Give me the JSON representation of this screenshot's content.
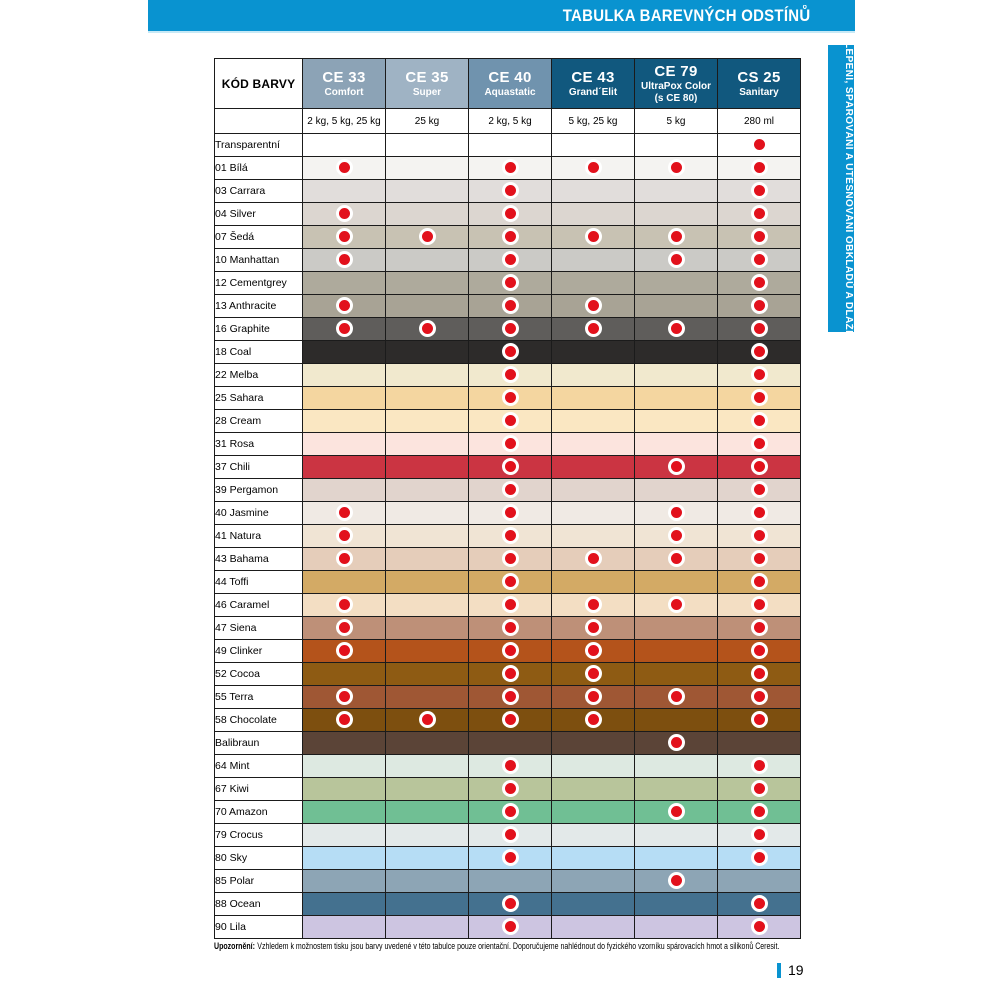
{
  "page": {
    "title": "TABULKA BAREVNÝCH ODSTÍNŮ",
    "side_tab": "LEPENÍ, SPÁROVÁNÍ A UTĚSŇOVÁNÍ OBKLADŮ A DLAŽBY",
    "note_label": "Upozornění:",
    "note_text": "Vzhledem k možnostem tisku jsou barvy uvedené v této tabulce pouze orientační. Doporučujeme nahlédnout do fyzického vzorníku spárovacích hmot a silikonů Ceresit.",
    "page_number": "19"
  },
  "colors": {
    "accent_cyan": "#0993D0",
    "header_dark_blue": "#11587E",
    "dot_red": "#E2111C"
  },
  "table": {
    "corner_label": "KÓD BARVY",
    "columns": [
      {
        "code": "CE 33",
        "name": "Comfort",
        "packages": "2 kg, 5 kg, 25 kg",
        "header_bg": "#8CA3B6"
      },
      {
        "code": "CE 35",
        "name": "Super",
        "packages": "25 kg",
        "header_bg": "#9FB3C4"
      },
      {
        "code": "CE 40",
        "name": "Aquastatic",
        "packages": "2 kg, 5 kg",
        "header_bg": "#7093AE"
      },
      {
        "code": "CE 43",
        "name": "Grand´Elit",
        "packages": "5 kg, 25 kg",
        "header_bg": "#11587E"
      },
      {
        "code": "CE 79",
        "name": "UltraPox Color",
        "name2": "(s CE 80)",
        "packages": "5 kg",
        "header_bg": "#11587E"
      },
      {
        "code": "CS 25",
        "name": "Sanitary",
        "packages": "280 ml",
        "header_bg": "#11587E"
      }
    ],
    "rows": [
      {
        "label": "Transparentní",
        "swatch": "#FFFFFF",
        "dots": [
          0,
          0,
          0,
          0,
          0,
          1
        ]
      },
      {
        "label": "01 Bílá",
        "swatch": "#F4F3F1",
        "dots": [
          1,
          0,
          1,
          1,
          1,
          1
        ]
      },
      {
        "label": "03 Carrara",
        "swatch": "#E1DDDB",
        "dots": [
          0,
          0,
          1,
          0,
          0,
          1
        ]
      },
      {
        "label": "04 Silver",
        "swatch": "#DCD6D0",
        "dots": [
          1,
          0,
          1,
          0,
          0,
          1
        ]
      },
      {
        "label": "07 Šedá",
        "swatch": "#C8C2B3",
        "dots": [
          1,
          1,
          1,
          1,
          1,
          1
        ]
      },
      {
        "label": "10 Manhattan",
        "swatch": "#CBCAC6",
        "dots": [
          1,
          0,
          1,
          0,
          1,
          1
        ]
      },
      {
        "label": "12 Cementgrey",
        "swatch": "#AEAA9C",
        "dots": [
          0,
          0,
          1,
          0,
          0,
          1
        ]
      },
      {
        "label": "13 Anthracite",
        "swatch": "#A8A395",
        "dots": [
          1,
          0,
          1,
          1,
          0,
          1
        ]
      },
      {
        "label": "16 Graphite",
        "swatch": "#5F5D5B",
        "dots": [
          1,
          1,
          1,
          1,
          1,
          1
        ]
      },
      {
        "label": "18 Coal",
        "swatch": "#2D2B2A",
        "dots": [
          0,
          0,
          1,
          0,
          0,
          1
        ]
      },
      {
        "label": "22 Melba",
        "swatch": "#F1E9CE",
        "dots": [
          0,
          0,
          1,
          0,
          0,
          1
        ]
      },
      {
        "label": "25 Sahara",
        "swatch": "#F4D6A0",
        "dots": [
          0,
          0,
          1,
          0,
          0,
          1
        ]
      },
      {
        "label": "28 Cream",
        "swatch": "#FAE7C2",
        "dots": [
          0,
          0,
          1,
          0,
          0,
          1
        ]
      },
      {
        "label": "31 Rosa",
        "swatch": "#FCE4DE",
        "dots": [
          0,
          0,
          1,
          0,
          0,
          1
        ]
      },
      {
        "label": "37 Chili",
        "swatch": "#CB3442",
        "dots": [
          0,
          0,
          1,
          0,
          1,
          1
        ]
      },
      {
        "label": "39 Pergamon",
        "swatch": "#E1D4CD",
        "dots": [
          0,
          0,
          1,
          0,
          0,
          1
        ]
      },
      {
        "label": "40 Jasmine",
        "swatch": "#F0EAE4",
        "dots": [
          1,
          0,
          1,
          0,
          1,
          1
        ]
      },
      {
        "label": "41 Natura",
        "swatch": "#F0E4D4",
        "dots": [
          1,
          0,
          1,
          0,
          1,
          1
        ]
      },
      {
        "label": "43 Bahama",
        "swatch": "#E5CDBA",
        "dots": [
          1,
          0,
          1,
          1,
          1,
          1
        ]
      },
      {
        "label": "44 Toffi",
        "swatch": "#D3AA65",
        "dots": [
          0,
          0,
          1,
          0,
          0,
          1
        ]
      },
      {
        "label": "46 Caramel",
        "swatch": "#F3DEC3",
        "dots": [
          1,
          0,
          1,
          1,
          1,
          1
        ]
      },
      {
        "label": "47 Siena",
        "swatch": "#BE9078",
        "dots": [
          1,
          0,
          1,
          1,
          0,
          1
        ]
      },
      {
        "label": "49 Clinker",
        "swatch": "#B4531B",
        "dots": [
          1,
          0,
          1,
          1,
          0,
          1
        ]
      },
      {
        "label": "52 Cocoa",
        "swatch": "#8E5B13",
        "dots": [
          0,
          0,
          1,
          1,
          0,
          1
        ]
      },
      {
        "label": "55 Terra",
        "swatch": "#9F5734",
        "dots": [
          1,
          0,
          1,
          1,
          1,
          1
        ]
      },
      {
        "label": "58 Chocolate",
        "swatch": "#7D4F0F",
        "dots": [
          1,
          1,
          1,
          1,
          0,
          1
        ]
      },
      {
        "label": "Balibraun",
        "swatch": "#5B4437",
        "dots": [
          0,
          0,
          0,
          0,
          1,
          0
        ]
      },
      {
        "label": "64 Mint",
        "swatch": "#DDE9E1",
        "dots": [
          0,
          0,
          1,
          0,
          0,
          1
        ]
      },
      {
        "label": "67 Kiwi",
        "swatch": "#B8C59B",
        "dots": [
          0,
          0,
          1,
          0,
          0,
          1
        ]
      },
      {
        "label": "70 Amazon",
        "swatch": "#70BF94",
        "dots": [
          0,
          0,
          1,
          0,
          1,
          1
        ]
      },
      {
        "label": "79 Crocus",
        "swatch": "#E3E9E9",
        "dots": [
          0,
          0,
          1,
          0,
          0,
          1
        ]
      },
      {
        "label": "80 Sky",
        "swatch": "#B6DDF5",
        "dots": [
          0,
          0,
          1,
          0,
          0,
          1
        ]
      },
      {
        "label": "85 Polar",
        "swatch": "#8DA5B5",
        "dots": [
          0,
          0,
          0,
          0,
          1,
          0
        ]
      },
      {
        "label": "88 Ocean",
        "swatch": "#44718F",
        "dots": [
          0,
          0,
          1,
          0,
          0,
          1
        ]
      },
      {
        "label": "90 Lila",
        "swatch": "#CDC5E1",
        "dots": [
          0,
          0,
          1,
          0,
          0,
          1
        ]
      }
    ]
  }
}
